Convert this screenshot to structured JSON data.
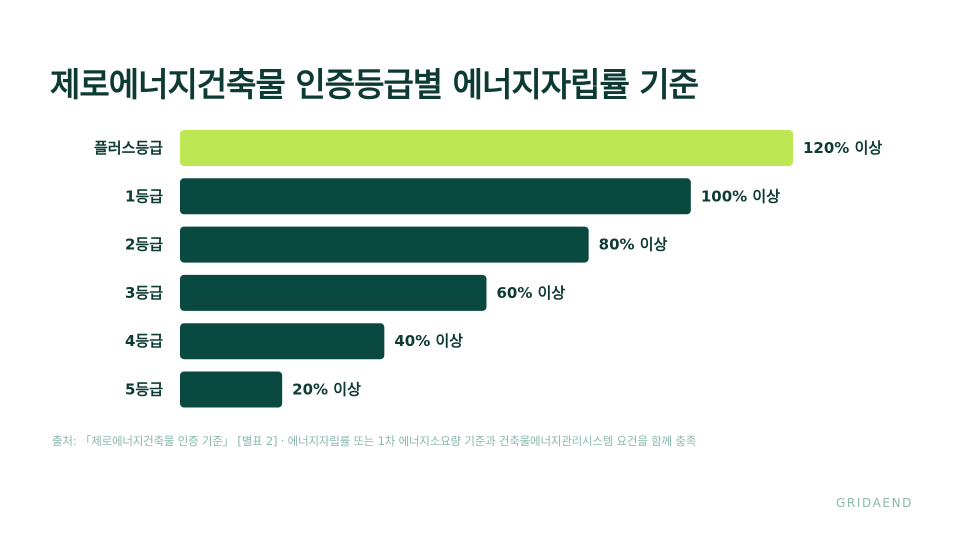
{
  "chart_data": {
    "type": "bar",
    "orientation": "horizontal",
    "title": "제로에너지건축물 인증등급별 에너지자립률 기준",
    "categories": [
      "플러스등급",
      "1등급",
      "2등급",
      "3등급",
      "4등급",
      "5등급"
    ],
    "values": [
      120,
      100,
      80,
      60,
      40,
      20
    ],
    "value_labels": [
      "120% 이상",
      "100% 이상",
      "80% 이상",
      "60% 이상",
      "40% 이상",
      "20% 이상"
    ],
    "xlim": [
      0,
      120
    ],
    "grid": false,
    "colors": {
      "highlight": "#bde853",
      "bar": "#0a4940",
      "text": "#0d3b33"
    }
  },
  "footer": {
    "source": "출처: 「제로에너지건축물 인증 기준」 [별표 2] · 에너지자립률 또는 1차 에너지소요량 기준과 건축물에너지관리시스템 요건을 함께 충족",
    "brand": "GRIDAEND"
  }
}
